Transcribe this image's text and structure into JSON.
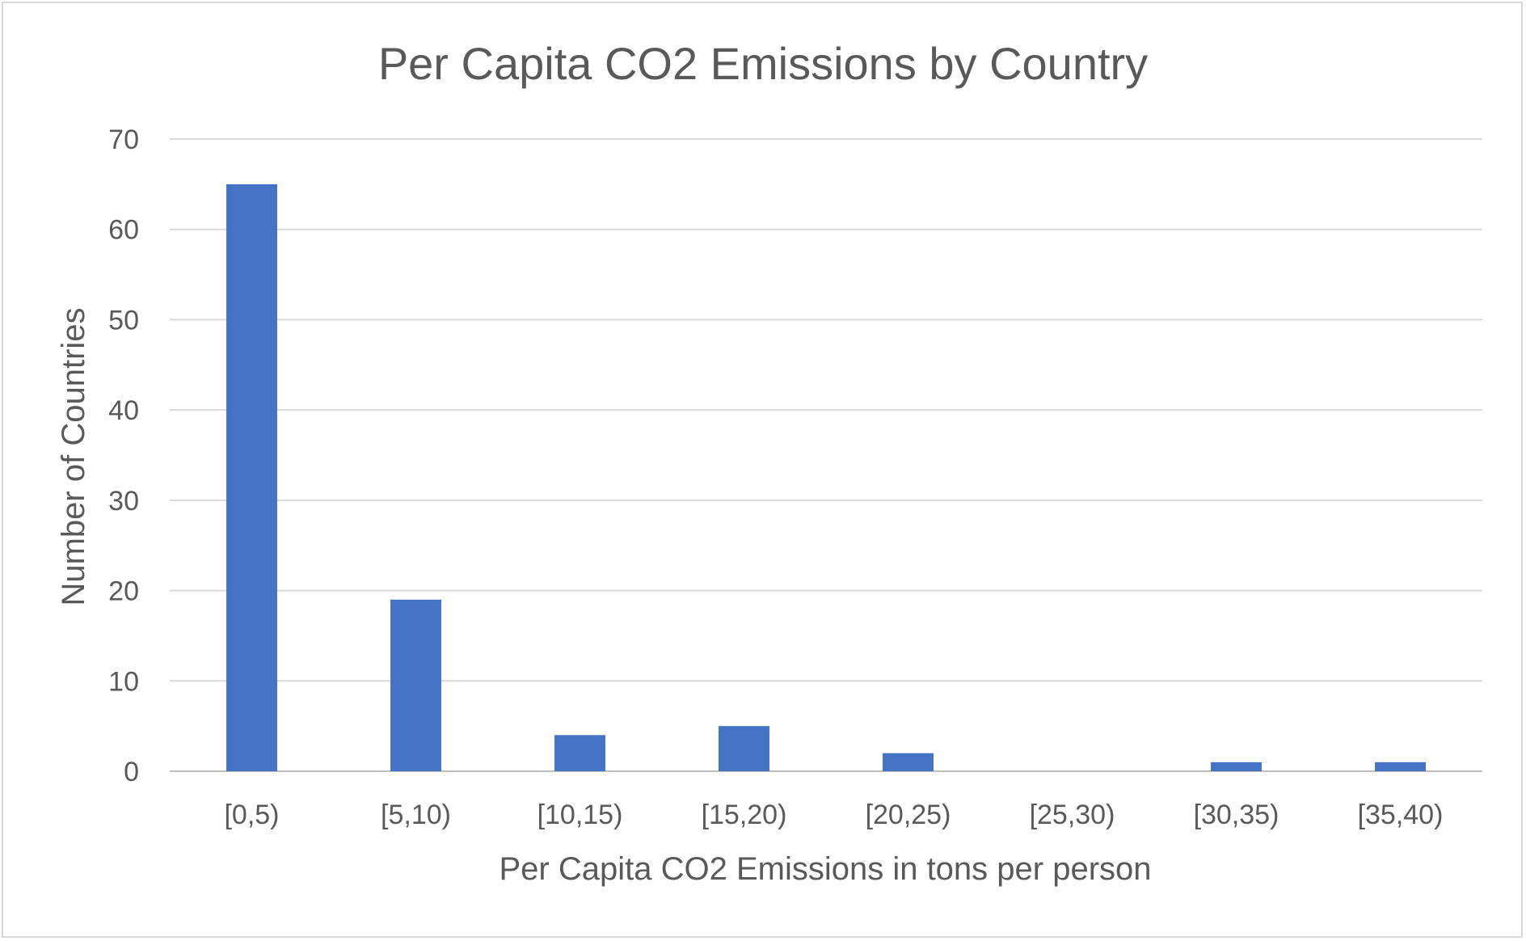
{
  "chart_data": {
    "type": "bar",
    "title": "Per Capita CO2 Emissions by Country",
    "xlabel": "Per Capita CO2 Emissions in tons per person",
    "ylabel": "Number of Countries",
    "categories": [
      "[0,5)",
      "[5,10)",
      "[10,15)",
      "[15,20)",
      "[20,25)",
      "[25,30)",
      "[30,35)",
      "[35,40)"
    ],
    "values": [
      65,
      19,
      4,
      5,
      2,
      0,
      1,
      1
    ],
    "ylim": [
      0,
      70
    ],
    "yticks": [
      0,
      10,
      20,
      30,
      40,
      50,
      60,
      70
    ],
    "grid": true,
    "legend": "none",
    "bar_color": "#4472C4"
  }
}
